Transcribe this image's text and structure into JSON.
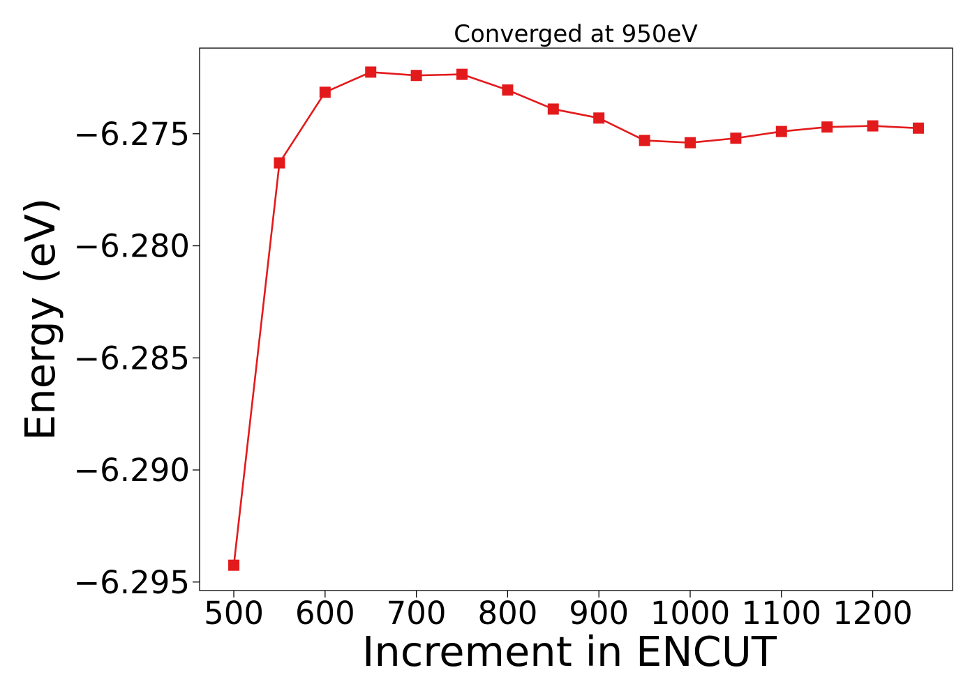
{
  "chart_data": {
    "type": "line",
    "title": "Converged at 950eV",
    "xlabel": "Increment in ENCUT",
    "ylabel": "Energy (eV)",
    "x": [
      500,
      550,
      600,
      650,
      700,
      750,
      800,
      850,
      900,
      950,
      1000,
      1050,
      1100,
      1150,
      1200,
      1250
    ],
    "series": [
      {
        "values": [
          -6.29425,
          -6.2763,
          -6.27315,
          -6.27225,
          -6.2724,
          -6.27235,
          -6.27305,
          -6.2739,
          -6.2743,
          -6.2753,
          -6.2754,
          -6.2752,
          -6.2749,
          -6.2747,
          -6.27465,
          -6.27475
        ],
        "color": "#e31a1c",
        "marker": "square"
      }
    ],
    "xlim": [
      462.5,
      1287.5
    ],
    "ylim": [
      -6.29538,
      -6.27118
    ],
    "xticks": [
      500,
      600,
      700,
      800,
      900,
      1000,
      1100,
      1200
    ],
    "xtick_labels": [
      "500",
      "600",
      "700",
      "800",
      "900",
      "1000",
      "1100",
      "1200"
    ],
    "yticks": [
      -6.295,
      -6.29,
      -6.285,
      -6.28,
      -6.275
    ],
    "ytick_labels": [
      "−6.295",
      "−6.290",
      "−6.285",
      "−6.280",
      "−6.275"
    ],
    "grid": false,
    "legend": "none"
  }
}
